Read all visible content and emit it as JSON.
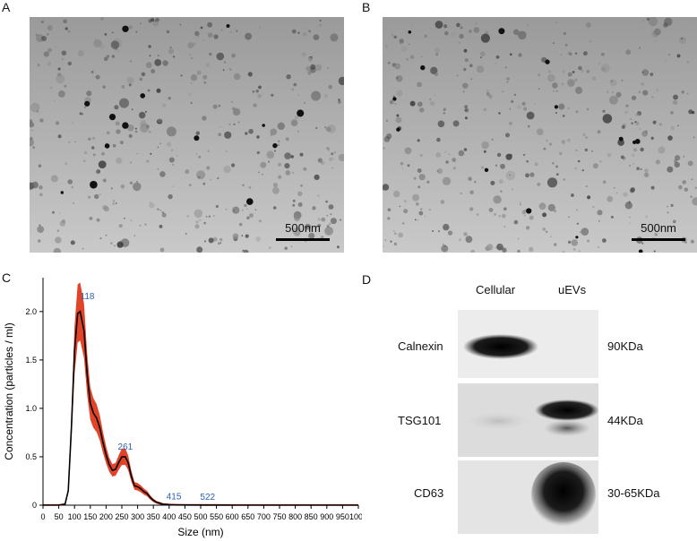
{
  "panels": {
    "a": {
      "label": "A",
      "scalebar": "500nm"
    },
    "b": {
      "label": "B",
      "scalebar": "500nm"
    },
    "c": {
      "label": "C"
    },
    "d": {
      "label": "D"
    }
  },
  "chart_data": {
    "type": "line",
    "xlabel": "Size (nm)",
    "ylabel": "Concentration (particles / ml)",
    "xlim": [
      0,
      1000
    ],
    "ylim": [
      0,
      2.35
    ],
    "xticks": [
      0,
      50,
      100,
      150,
      200,
      250,
      300,
      350,
      400,
      450,
      500,
      550,
      600,
      650,
      700,
      750,
      800,
      850,
      900,
      950,
      1000
    ],
    "yticks": [
      0,
      0.5,
      1.0,
      1.5,
      2.0
    ],
    "ytick_labels": [
      "0",
      "0.5",
      "1.0",
      "1.5",
      "2.0"
    ],
    "series": [
      {
        "x": [
          0,
          50,
          70,
          80,
          90,
          100,
          110,
          118,
          130,
          140,
          150,
          160,
          170,
          180,
          190,
          200,
          210,
          220,
          230,
          240,
          250,
          261,
          270,
          280,
          290,
          300,
          310,
          320,
          330,
          340,
          350,
          360,
          370,
          380,
          400,
          415,
          450,
          522,
          600,
          700,
          800,
          900,
          1000
        ],
        "y": [
          0,
          0,
          0.01,
          0.15,
          0.8,
          1.6,
          1.98,
          2.0,
          1.8,
          1.35,
          1.05,
          0.95,
          0.9,
          0.8,
          0.65,
          0.52,
          0.42,
          0.36,
          0.37,
          0.44,
          0.5,
          0.5,
          0.44,
          0.3,
          0.2,
          0.19,
          0.17,
          0.14,
          0.12,
          0.08,
          0.05,
          0.03,
          0.02,
          0.01,
          0.005,
          0.003,
          0.002,
          0.001,
          0,
          0,
          0,
          0,
          0
        ]
      }
    ],
    "error_band_color": "#e03a1e",
    "line_color": "#000000",
    "annotations": [
      {
        "x": 118,
        "y": 2.0,
        "text": "118",
        "color": "#2a5fb0"
      },
      {
        "x": 261,
        "y": 0.5,
        "text": "261",
        "color": "#2a5fb0"
      },
      {
        "x": 415,
        "y": 0.003,
        "text": "415",
        "color": "#2a5fb0"
      },
      {
        "x": 522,
        "y": 0.001,
        "text": "522",
        "color": "#2a5fb0"
      }
    ],
    "grid": false
  },
  "western_blot": {
    "columns": [
      "Cellular",
      "uEVs"
    ],
    "rows": [
      {
        "protein": "Calnexin",
        "size": "90KDa"
      },
      {
        "protein": "TSG101",
        "size": "44KDa"
      },
      {
        "protein": "CD63",
        "size": "30-65KDa"
      }
    ]
  }
}
